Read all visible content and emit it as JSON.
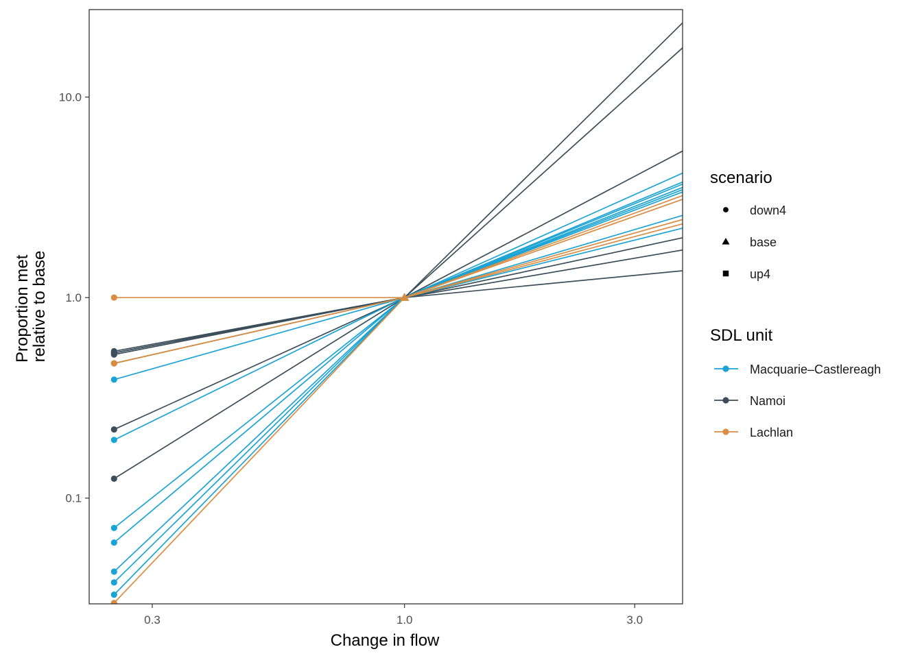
{
  "chart_data": {
    "type": "line",
    "xlabel": "Change in flow",
    "ylabel_lines": [
      "Proportion met",
      "relative to base"
    ],
    "x_scale": "log",
    "y_scale": "log",
    "xlim": [
      0.222,
      3.77
    ],
    "ylim": [
      0.0297,
      27.3
    ],
    "x_ticks": [
      {
        "value": 0.3,
        "label": "0.3"
      },
      {
        "value": 1.0,
        "label": "1.0"
      },
      {
        "value": 3.0,
        "label": "3.0"
      }
    ],
    "y_ticks": [
      {
        "value": 0.1,
        "label": "0.1"
      },
      {
        "value": 1.0,
        "label": "1.0"
      },
      {
        "value": 10.0,
        "label": "10.0"
      }
    ],
    "x": [
      0.25,
      1.0,
      4.0
    ],
    "scenarios": [
      {
        "name": "down4",
        "shape": "circle"
      },
      {
        "name": "base",
        "shape": "triangle"
      },
      {
        "name": "up4",
        "shape": "square"
      }
    ],
    "legend_scenario_title": "scenario",
    "legend_unit_title": "SDL unit",
    "units": [
      {
        "name": "Macquarie–Castlereagh",
        "color": "#1aa3d4"
      },
      {
        "name": "Namoi",
        "color": "#3b4e5a"
      },
      {
        "name": "Lachlan",
        "color": "#d98d43"
      }
    ],
    "series": [
      {
        "unit": "Namoi",
        "values": [
          0.54,
          1.0,
          27.0
        ]
      },
      {
        "unit": "Namoi",
        "values": [
          0.53,
          1.0,
          20.0
        ]
      },
      {
        "unit": "Namoi",
        "values": [
          0.22,
          1.0,
          5.8
        ]
      },
      {
        "unit": "Namoi",
        "values": [
          0.125,
          1.0,
          2.05
        ]
      },
      {
        "unit": "Namoi",
        "values": [
          0.52,
          1.0,
          1.77
        ]
      },
      {
        "unit": "Namoi",
        "values": [
          0.53,
          1.0,
          1.38
        ]
      },
      {
        "unit": "Macquarie–Castlereagh",
        "values": [
          0.47,
          1.0,
          4.45
        ]
      },
      {
        "unit": "Macquarie–Castlereagh",
        "values": [
          0.39,
          1.0,
          4.0
        ]
      },
      {
        "unit": "Macquarie–Castlereagh",
        "values": [
          0.195,
          1.0,
          3.9
        ]
      },
      {
        "unit": "Macquarie–Castlereagh",
        "values": [
          0.071,
          1.0,
          3.75
        ]
      },
      {
        "unit": "Macquarie–Castlereagh",
        "values": [
          0.06,
          1.0,
          3.65
        ]
      },
      {
        "unit": "Macquarie–Castlereagh",
        "values": [
          0.043,
          1.0,
          3.55
        ]
      },
      {
        "unit": "Macquarie–Castlereagh",
        "values": [
          0.038,
          1.0,
          2.68
        ]
      },
      {
        "unit": "Macquarie–Castlereagh",
        "values": [
          0.033,
          1.0,
          2.3
        ]
      },
      {
        "unit": "Lachlan",
        "values": [
          1.0,
          1.0,
          3.4
        ]
      },
      {
        "unit": "Lachlan",
        "values": [
          0.47,
          1.0,
          3.25
        ]
      },
      {
        "unit": "Lachlan",
        "values": [
          0.47,
          1.0,
          2.55
        ]
      },
      {
        "unit": "Lachlan",
        "values": [
          0.03,
          1.0,
          2.42
        ]
      }
    ]
  }
}
